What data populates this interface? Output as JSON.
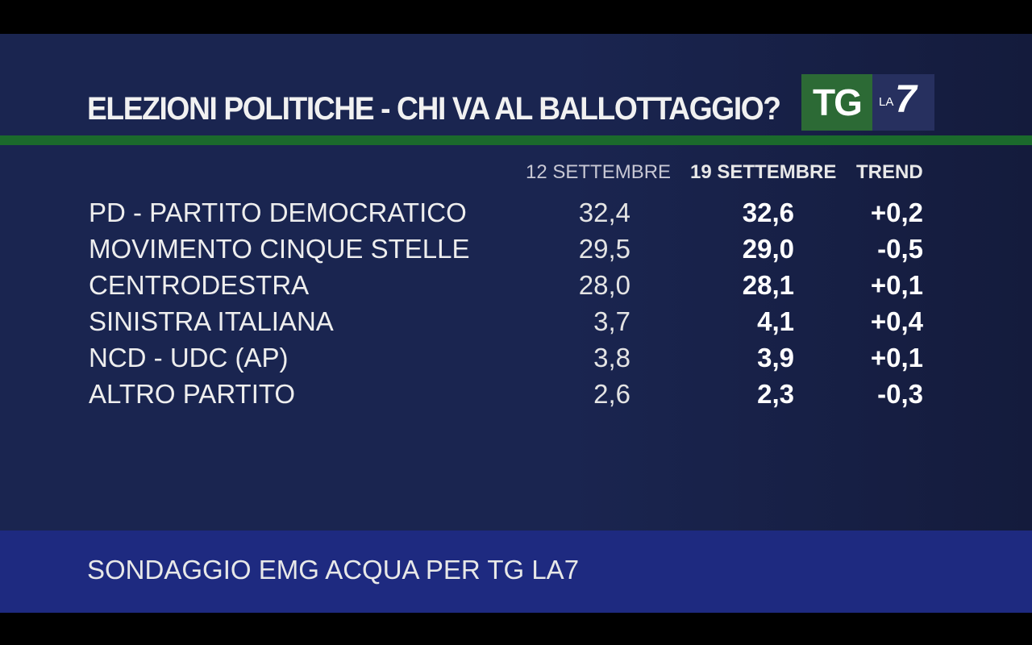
{
  "title": "ELEZIONI POLITICHE - CHI VA AL BALLOTTAGGIO?",
  "logo": {
    "tg": "TG",
    "la": "LA",
    "seven": "7"
  },
  "colors": {
    "background": "#1a2550",
    "accent_green": "#1b6a2c",
    "footer": "#1e2a80",
    "logo_tg": "#2c6a35",
    "logo_la7": "#27305f"
  },
  "chart_data": {
    "type": "table",
    "title": "ELEZIONI POLITICHE - CHI VA AL BALLOTTAGGIO?",
    "columns": [
      "12 SETTEMBRE",
      "19 SETTEMBRE",
      "TREND"
    ],
    "rows": [
      {
        "party": "PD - PARTITO DEMOCRATICO",
        "prev": "32,4",
        "curr": "32,6",
        "trend": "+0,2"
      },
      {
        "party": "MOVIMENTO CINQUE STELLE",
        "prev": "29,5",
        "curr": "29,0",
        "trend": "-0,5"
      },
      {
        "party": "CENTRODESTRA",
        "prev": "28,0",
        "curr": "28,1",
        "trend": "+0,1"
      },
      {
        "party": "SINISTRA ITALIANA",
        "prev": "3,7",
        "curr": "4,1",
        "trend": "+0,4"
      },
      {
        "party": "NCD - UDC (AP)",
        "prev": "3,8",
        "curr": "3,9",
        "trend": "+0,1"
      },
      {
        "party": "ALTRO PARTITO",
        "prev": "2,6",
        "curr": "2,3",
        "trend": "-0,3"
      }
    ]
  },
  "footer": "SONDAGGIO EMG ACQUA PER TG LA7"
}
